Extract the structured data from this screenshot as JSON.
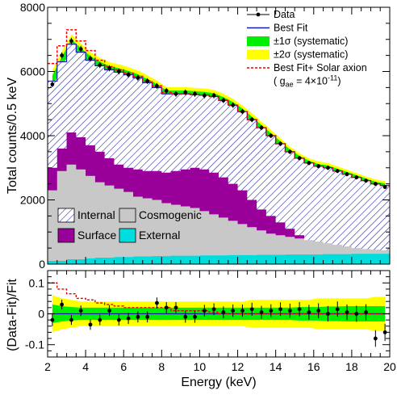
{
  "chart_data": [
    {
      "type": "area",
      "ylabel": "Total counts/0.5 keV",
      "xlim": [
        2,
        20
      ],
      "ylim": [
        0,
        8000
      ],
      "y_ticks": [
        0,
        2000,
        4000,
        6000,
        8000
      ],
      "y_tick_labels": [
        "0",
        "2000",
        "4000",
        "6000",
        "8000"
      ],
      "legend_top": [
        {
          "label": "Data",
          "style": "marker"
        },
        {
          "label": "Best Fit",
          "style": "line",
          "color": "#1a1aa8"
        },
        {
          "label": "±1σ (systematic)",
          "style": "fill",
          "color": "#00ee00"
        },
        {
          "label": "±2σ (systematic)",
          "style": "fill",
          "color": "#ffff00"
        },
        {
          "label": "Best Fit+ Solar axion",
          "style": "dashed",
          "color": "#ee0000"
        },
        {
          "label": "( g_ae = 4×10^-11)",
          "style": "note"
        }
      ],
      "legend_bottom": [
        {
          "label": "Internal",
          "style": "hatch",
          "color": "#1a1aa8"
        },
        {
          "label": "Cosmogenic",
          "style": "fill",
          "color": "#c8c8c8"
        },
        {
          "label": "Surface",
          "style": "fill",
          "color": "#990099"
        },
        {
          "label": "External",
          "style": "fill",
          "color": "#00dddd"
        }
      ],
      "x_edges": [
        2.0,
        2.5,
        3.0,
        3.5,
        4.0,
        4.5,
        5.0,
        5.5,
        6.0,
        6.5,
        7.0,
        7.5,
        8.0,
        8.5,
        9.0,
        9.5,
        10.0,
        10.5,
        11.0,
        11.5,
        12.0,
        12.5,
        13.0,
        13.5,
        14.0,
        14.5,
        15.0,
        15.5,
        16.0,
        16.5,
        17.0,
        17.5,
        18.0,
        18.5,
        19.0,
        19.5,
        20.0
      ],
      "series": [
        {
          "name": "Data",
          "x": [
            2.25,
            2.75,
            3.25,
            3.75,
            4.25,
            4.75,
            5.25,
            5.75,
            6.25,
            6.75,
            7.25,
            7.75,
            8.25,
            8.75,
            9.25,
            9.75,
            10.25,
            10.75,
            11.25,
            11.75,
            12.25,
            12.75,
            13.25,
            13.75,
            14.25,
            14.75,
            15.25,
            15.75,
            16.25,
            16.75,
            17.25,
            17.75,
            18.25,
            18.75,
            19.25,
            19.75
          ],
          "values": [
            5600,
            6500,
            6950,
            6700,
            6400,
            6200,
            6100,
            6000,
            5900,
            5800,
            5700,
            5550,
            5400,
            5300,
            5350,
            5300,
            5250,
            5250,
            5100,
            4950,
            4750,
            4500,
            4250,
            4000,
            3750,
            3500,
            3300,
            3150,
            3050,
            3000,
            2900,
            2800,
            2700,
            2600,
            2500,
            2400
          ]
        },
        {
          "name": "Best Fit",
          "values": [
            5700,
            6300,
            6850,
            6600,
            6350,
            6180,
            6050,
            5980,
            5900,
            5800,
            5650,
            5500,
            5300,
            5300,
            5300,
            5280,
            5260,
            5220,
            5100,
            4950,
            4750,
            4500,
            4250,
            4000,
            3750,
            3500,
            3300,
            3150,
            3050,
            3000,
            2900,
            2800,
            2700,
            2600,
            2500,
            2450
          ]
        },
        {
          "name": "Best Fit+ Solar axion",
          "values": [
            6250,
            6800,
            7300,
            6950,
            6650,
            6350,
            6150,
            6050,
            5950,
            5850,
            5700,
            5550,
            5350,
            5300,
            5300,
            5280,
            5260,
            5220,
            5100,
            4950,
            4750,
            4500,
            4250,
            4000,
            3750,
            3500,
            3300,
            3150,
            3050,
            3000,
            2900,
            2800,
            2700,
            2600,
            2500,
            2450
          ]
        },
        {
          "name": "Internal",
          "values": [
            5700,
            6300,
            6850,
            6600,
            6350,
            6180,
            6050,
            5980,
            5900,
            5800,
            5650,
            5500,
            5300,
            5300,
            5300,
            5280,
            5260,
            5220,
            5100,
            4950,
            4750,
            4500,
            4250,
            4000,
            3750,
            3500,
            3300,
            3150,
            3050,
            3000,
            2900,
            2800,
            2700,
            2600,
            2500,
            2450
          ]
        },
        {
          "name": "Surface",
          "values": [
            3000,
            3600,
            4100,
            3950,
            3700,
            3500,
            3300,
            3100,
            3000,
            2950,
            2900,
            2900,
            2850,
            2900,
            2950,
            3000,
            2950,
            2850,
            2700,
            2500,
            2300,
            2000,
            1700,
            1500,
            1300,
            1100,
            900,
            700,
            600,
            550,
            500,
            450,
            420,
            400,
            380,
            380
          ]
        },
        {
          "name": "Cosmogenic",
          "values": [
            2300,
            2900,
            3100,
            2950,
            2750,
            2550,
            2450,
            2350,
            2250,
            2100,
            2050,
            2000,
            1900,
            1850,
            1800,
            1750,
            1650,
            1550,
            1450,
            1350,
            1250,
            1150,
            1050,
            950,
            900,
            850,
            800,
            750,
            700,
            650,
            600,
            550,
            500,
            470,
            450,
            430
          ]
        },
        {
          "name": "External",
          "values": [
            100,
            100,
            150,
            150,
            180,
            200,
            200,
            220,
            220,
            240,
            240,
            250,
            250,
            260,
            260,
            260,
            270,
            270,
            270,
            280,
            280,
            280,
            290,
            290,
            290,
            300,
            300,
            300,
            300,
            310,
            310,
            310,
            320,
            320,
            320,
            320
          ]
        }
      ]
    },
    {
      "type": "scatter",
      "xlabel": "Energy (keV)",
      "ylabel": "(Data-Fit)/Fit",
      "xlim": [
        2,
        20
      ],
      "ylim": [
        -0.14,
        0.14
      ],
      "x_ticks": [
        2,
        4,
        6,
        8,
        10,
        12,
        14,
        16,
        18,
        20
      ],
      "x_tick_labels": [
        "2",
        "4",
        "6",
        "8",
        "10",
        "12",
        "14",
        "16",
        "18",
        "20"
      ],
      "y_ticks": [
        -0.1,
        0,
        0.1
      ],
      "y_tick_labels": [
        "-0.1",
        "0",
        "0.1"
      ],
      "x": [
        2.25,
        2.75,
        3.25,
        3.75,
        4.25,
        4.75,
        5.25,
        5.75,
        6.25,
        6.75,
        7.25,
        7.75,
        8.25,
        8.75,
        9.25,
        9.75,
        10.25,
        10.75,
        11.25,
        11.75,
        12.25,
        12.75,
        13.25,
        13.75,
        14.25,
        14.75,
        15.25,
        15.75,
        16.25,
        16.75,
        17.25,
        17.75,
        18.25,
        18.75,
        19.25,
        19.75
      ],
      "residual": [
        -0.02,
        0.03,
        -0.02,
        0.01,
        -0.035,
        -0.02,
        0.01,
        -0.02,
        -0.015,
        -0.01,
        -0.01,
        0.035,
        0.02,
        0.02,
        -0.01,
        -0.01,
        0.01,
        0.015,
        0.005,
        0.01,
        0.01,
        0.015,
        0.005,
        0.01,
        0.015,
        0.01,
        0.015,
        0.005,
        0.01,
        0.0,
        0.015,
        0.005,
        0.0,
        0.005,
        -0.08,
        -0.06
      ],
      "residual_err": [
        0.02,
        0.016,
        0.016,
        0.017,
        0.017,
        0.017,
        0.018,
        0.018,
        0.018,
        0.018,
        0.018,
        0.018,
        0.018,
        0.018,
        0.019,
        0.019,
        0.019,
        0.019,
        0.019,
        0.02,
        0.02,
        0.021,
        0.021,
        0.021,
        0.022,
        0.023,
        0.023,
        0.024,
        0.024,
        0.025,
        0.025,
        0.025,
        0.026,
        0.026,
        0.027,
        0.028
      ],
      "sigma1": [
        0.03,
        0.025,
        0.022,
        0.02,
        0.02,
        0.02,
        0.02,
        0.02,
        0.02,
        0.02,
        0.02,
        0.02,
        0.02,
        0.02,
        0.02,
        0.02,
        0.02,
        0.02,
        0.02,
        0.02,
        0.02,
        0.02,
        0.02,
        0.02,
        0.02,
        0.02,
        0.022,
        0.022,
        0.022,
        0.024,
        0.024,
        0.025,
        0.025,
        0.025,
        0.025,
        0.025
      ],
      "sigma2": [
        0.06,
        0.05,
        0.045,
        0.04,
        0.04,
        0.04,
        0.04,
        0.04,
        0.04,
        0.04,
        0.04,
        0.04,
        0.04,
        0.04,
        0.04,
        0.04,
        0.04,
        0.04,
        0.04,
        0.04,
        0.04,
        0.045,
        0.045,
        0.045,
        0.045,
        0.045,
        0.045,
        0.045,
        0.05,
        0.05,
        0.05,
        0.05,
        0.05,
        0.05,
        0.055,
        0.055
      ],
      "axion_residual": [
        0.1,
        0.08,
        0.065,
        0.05,
        0.045,
        0.035,
        0.03,
        0.025,
        0.02,
        0.02,
        0.02,
        0.02,
        0.02,
        0.01,
        0.01,
        0.01,
        0.01,
        0.005,
        0.0,
        0.0,
        0.0,
        0.0,
        0.0,
        0.0,
        0.0,
        0.0,
        0.0,
        0.0,
        0.0,
        0.0,
        0.0,
        0.0,
        0.0,
        0.0,
        0.0,
        0.0
      ]
    }
  ]
}
